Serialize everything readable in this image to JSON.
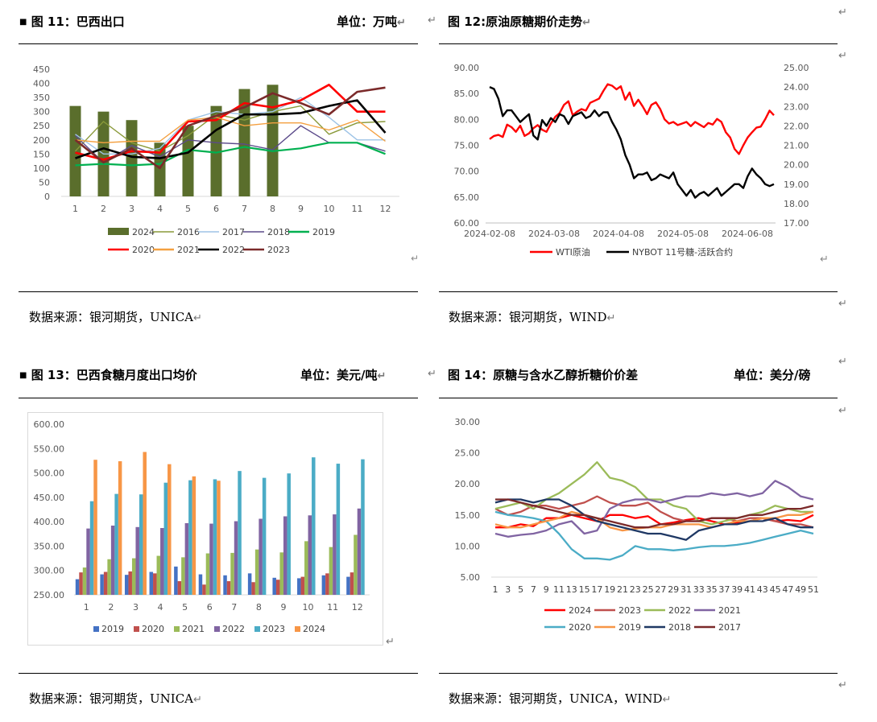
{
  "return_mark": "↵",
  "header_marker": "■",
  "fig11": {
    "title": "图 11：巴西出口",
    "unit": "单位：万吨",
    "source": "数据来源：银河期货，UNICA",
    "chart_data": {
      "type": "bar+line",
      "categories": [
        "1",
        "2",
        "3",
        "4",
        "5",
        "6",
        "7",
        "8",
        "9",
        "10",
        "11",
        "12"
      ],
      "ylim": [
        0,
        450
      ],
      "yticks": [
        "0",
        "50",
        "100",
        "150",
        "200",
        "250",
        "300",
        "350",
        "400",
        "450"
      ],
      "bar_series": {
        "name": "2024",
        "color": "#5a6e2c",
        "values": [
          320,
          300,
          270,
          190,
          250,
          320,
          380,
          395,
          null,
          null,
          null,
          null
        ]
      },
      "series": [
        {
          "name": "2016",
          "color": "#8a9a3a",
          "values": [
            160,
            265,
            190,
            160,
            215,
            290,
            270,
            300,
            320,
            220,
            260,
            265
          ]
        },
        {
          "name": "2017",
          "color": "#9dc3e6",
          "values": [
            220,
            150,
            150,
            170,
            270,
            300,
            290,
            300,
            350,
            280,
            200,
            200
          ]
        },
        {
          "name": "2018",
          "color": "#5b4a8a",
          "values": [
            215,
            120,
            180,
            140,
            200,
            190,
            185,
            165,
            250,
            190,
            190,
            160
          ]
        },
        {
          "name": "2019",
          "color": "#00b050",
          "values": [
            110,
            115,
            110,
            115,
            165,
            155,
            175,
            160,
            170,
            190,
            190,
            150
          ]
        },
        {
          "name": "2020",
          "color": "#ff0000",
          "values": [
            155,
            130,
            160,
            155,
            265,
            270,
            330,
            315,
            340,
            395,
            300,
            300
          ]
        },
        {
          "name": "2021",
          "color": "#f4a040",
          "values": [
            200,
            190,
            195,
            195,
            270,
            280,
            250,
            260,
            260,
            235,
            270,
            195
          ]
        },
        {
          "name": "2022",
          "color": "#000000",
          "values": [
            135,
            170,
            140,
            135,
            155,
            235,
            290,
            290,
            295,
            320,
            340,
            225
          ]
        },
        {
          "name": "2023",
          "color": "#7b2a2a",
          "values": [
            200,
            120,
            170,
            100,
            250,
            285,
            315,
            365,
            330,
            290,
            370,
            385
          ]
        }
      ]
    }
  },
  "fig12": {
    "title": "图 12:原油原糖期价走势",
    "chart_data": {
      "type": "line",
      "x_ticks": [
        "2024-02-08",
        "2024-03-08",
        "2024-04-08",
        "2024-05-08",
        "2024-06-08"
      ],
      "left_yticks": [
        "60.00",
        "65.00",
        "70.00",
        "75.00",
        "80.00",
        "85.00",
        "90.00"
      ],
      "right_yticks": [
        "17.00",
        "18.00",
        "19.00",
        "20.00",
        "21.00",
        "22.00",
        "23.00",
        "24.00",
        "25.00"
      ],
      "left_ylim": [
        60,
        90
      ],
      "right_ylim": [
        17,
        25
      ],
      "series": [
        {
          "name": "WTI原油",
          "axis": "left",
          "color": "#ff0000",
          "values": [
            76.2,
            76.8,
            77.0,
            76.6,
            79.0,
            78.5,
            77.6,
            78.8,
            76.8,
            77.3,
            78.3,
            78.9,
            78.0,
            77.6,
            79.2,
            80.5,
            81.2,
            82.8,
            83.5,
            80.8,
            81.5,
            82.0,
            81.7,
            83.2,
            83.6,
            84.0,
            85.5,
            86.8,
            86.5,
            85.8,
            86.4,
            83.8,
            85.2,
            82.6,
            83.8,
            82.5,
            81.0,
            82.8,
            83.3,
            82.0,
            80.0,
            79.2,
            79.5,
            78.9,
            79.2,
            79.5,
            78.7,
            79.5,
            79.0,
            78.5,
            79.3,
            79.0,
            80.1,
            79.5,
            77.5,
            76.5,
            74.3,
            73.3,
            75.0,
            76.5,
            77.5,
            78.4,
            78.6,
            80.0,
            81.7,
            80.8
          ]
        },
        {
          "name": "NYBOT 11号糖-活跃合约",
          "axis": "right",
          "color": "#000000",
          "values": [
            24.0,
            23.9,
            23.4,
            22.5,
            22.8,
            22.8,
            22.5,
            22.2,
            22.4,
            22.6,
            21.5,
            21.3,
            22.3,
            22.0,
            22.4,
            22.2,
            22.6,
            22.5,
            22.1,
            22.5,
            22.6,
            22.7,
            22.4,
            22.5,
            22.8,
            22.5,
            22.7,
            22.7,
            22.2,
            21.8,
            21.3,
            20.5,
            20.0,
            19.3,
            19.5,
            19.5,
            19.6,
            19.2,
            19.3,
            19.5,
            19.4,
            19.3,
            19.6,
            19.0,
            18.7,
            18.4,
            18.7,
            18.3,
            18.5,
            18.6,
            18.4,
            18.6,
            18.8,
            18.4,
            18.6,
            18.8,
            19.0,
            19.0,
            18.8,
            19.4,
            19.8,
            19.5,
            19.3,
            19.0,
            18.9,
            19.0
          ]
        }
      ]
    }
  },
  "fig13": {
    "title": "图 13：巴西食糖月度出口均价",
    "unit": "单位：美元/吨",
    "source": "数据来源：银河期货，UNICA",
    "chart_data": {
      "type": "bar",
      "categories": [
        "1",
        "2",
        "3",
        "4",
        "5",
        "6",
        "7",
        "8",
        "9",
        "10",
        "11",
        "12"
      ],
      "ylim": [
        250,
        600
      ],
      "yticks": [
        "250.00",
        "300.00",
        "350.00",
        "400.00",
        "450.00",
        "500.00",
        "550.00",
        "600.00"
      ],
      "series": [
        {
          "name": "2019",
          "color": "#4472c4",
          "values": [
            282,
            292,
            291,
            297,
            308,
            292,
            290,
            294,
            285,
            284,
            290,
            287
          ]
        },
        {
          "name": "2020",
          "color": "#c0504d",
          "values": [
            296,
            297,
            298,
            294,
            278,
            271,
            278,
            276,
            281,
            287,
            294,
            296
          ]
        },
        {
          "name": "2021",
          "color": "#9bbb59",
          "values": [
            306,
            323,
            325,
            330,
            327,
            335,
            336,
            343,
            337,
            360,
            348,
            373
          ]
        },
        {
          "name": "2022",
          "color": "#8064a2",
          "values": [
            386,
            392,
            389,
            387,
            397,
            396,
            401,
            406,
            411,
            413,
            415,
            427
          ]
        },
        {
          "name": "2023",
          "color": "#4bacc6",
          "values": [
            442,
            457,
            456,
            480,
            485,
            487,
            504,
            490,
            499,
            532,
            519,
            528
          ]
        },
        {
          "name": "2024",
          "color": "#f79646",
          "values": [
            527,
            524,
            543,
            518,
            493,
            484,
            null,
            null,
            null,
            null,
            null,
            null
          ]
        }
      ]
    }
  },
  "fig14": {
    "title": "图 14：原糖与含水乙醇折糖价价差",
    "unit": "单位：美分/磅",
    "source": "数据来源：银河期货，UNICA，WIND",
    "chart_data": {
      "type": "line",
      "x_ticks": [
        "1",
        "3",
        "5",
        "7",
        "9",
        "11",
        "13",
        "15",
        "17",
        "19",
        "21",
        "23",
        "25",
        "27",
        "29",
        "31",
        "33",
        "35",
        "37",
        "39",
        "41",
        "43",
        "45",
        "47",
        "49",
        "51"
      ],
      "ylim": [
        5,
        30
      ],
      "yticks": [
        "5.00",
        "10.00",
        "15.00",
        "20.00",
        "25.00",
        "30.00"
      ],
      "series": [
        {
          "name": "2024",
          "color": "#ff0000",
          "values": [
            13.0,
            13.0,
            13.5,
            13.2,
            14.5,
            14.5,
            15.0,
            14.5,
            14.0,
            15.0,
            15.0,
            14.5,
            14.8,
            13.5,
            13.8,
            14.2,
            14.5,
            14.0,
            13.5,
            13.8,
            14.0,
            14.5,
            14.0,
            14.2,
            14.0,
            15.0
          ]
        },
        {
          "name": "2023",
          "color": "#c0504d",
          "values": [
            16.0,
            15.0,
            15.5,
            16.5,
            16.5,
            16.0,
            16.5,
            17.0,
            18.0,
            17.0,
            16.5,
            16.5,
            17.0,
            15.5,
            14.5,
            14.0,
            14.0,
            14.5,
            14.5,
            14.0,
            14.5,
            14.5,
            14.0,
            13.5,
            13.5,
            13.0
          ]
        },
        {
          "name": "2022",
          "color": "#9bbb59",
          "values": [
            16.0,
            16.5,
            17.0,
            16.0,
            17.5,
            18.5,
            20.0,
            21.5,
            23.5,
            21.0,
            20.5,
            19.5,
            17.5,
            17.5,
            16.5,
            16.0,
            14.0,
            13.5,
            14.0,
            14.5,
            15.0,
            15.5,
            16.5,
            16.0,
            15.5,
            15.5
          ]
        },
        {
          "name": "2021",
          "color": "#8064a2",
          "values": [
            12.0,
            11.5,
            11.8,
            12.0,
            12.5,
            13.5,
            14.0,
            12.0,
            12.5,
            16.0,
            17.0,
            17.5,
            17.5,
            17.0,
            17.5,
            18.0,
            18.0,
            18.5,
            18.2,
            18.5,
            18.0,
            18.5,
            20.5,
            19.5,
            18.0,
            17.5
          ]
        },
        {
          "name": "2020",
          "color": "#4bacc6",
          "values": [
            15.5,
            15.0,
            14.8,
            14.5,
            14.0,
            12.0,
            9.5,
            8.0,
            8.0,
            7.8,
            8.5,
            10.0,
            9.5,
            9.5,
            9.3,
            9.5,
            9.8,
            10.0,
            10.0,
            10.2,
            10.5,
            11.0,
            11.5,
            12.0,
            12.5,
            12.0
          ]
        },
        {
          "name": "2019",
          "color": "#f79646",
          "values": [
            13.5,
            13.0,
            13.0,
            13.5,
            14.0,
            14.5,
            15.5,
            15.0,
            14.5,
            13.0,
            12.5,
            12.8,
            13.0,
            13.0,
            13.5,
            13.5,
            13.5,
            13.0,
            13.5,
            14.0,
            14.0,
            14.5,
            14.5,
            15.0,
            15.0,
            15.5
          ]
        },
        {
          "name": "2018",
          "color": "#1f3864",
          "values": [
            17.0,
            17.5,
            17.5,
            17.0,
            17.5,
            17.5,
            16.5,
            15.0,
            14.0,
            13.5,
            13.0,
            12.5,
            12.0,
            12.0,
            11.5,
            11.0,
            12.5,
            13.0,
            13.5,
            13.5,
            14.0,
            14.0,
            14.5,
            13.5,
            13.0,
            13.0
          ]
        },
        {
          "name": "2017",
          "color": "#7b2a2a",
          "values": [
            17.5,
            17.5,
            17.0,
            16.5,
            16.0,
            15.5,
            15.0,
            15.0,
            14.5,
            14.0,
            13.5,
            13.0,
            13.0,
            13.5,
            13.5,
            14.0,
            14.0,
            14.5,
            14.5,
            14.5,
            15.0,
            15.0,
            15.5,
            16.0,
            16.0,
            16.5
          ]
        }
      ]
    }
  }
}
